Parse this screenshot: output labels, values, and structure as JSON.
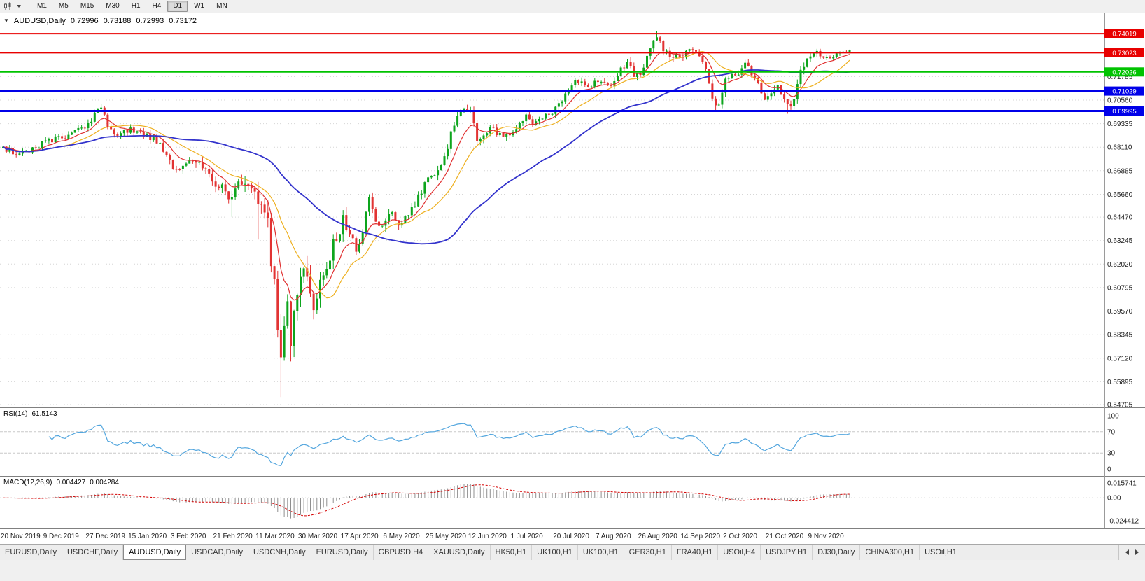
{
  "toolbar": {
    "timeframes": [
      "M1",
      "M5",
      "M15",
      "M30",
      "H1",
      "H4",
      "D1",
      "W1",
      "MN"
    ],
    "active_timeframe": "D1"
  },
  "icons": {
    "chart_dropdown_arrow": "▼"
  },
  "chart_header": {
    "symbol": "AUDUSD,Daily",
    "open": "0.72996",
    "high": "0.73188",
    "low": "0.72993",
    "close": "0.73172"
  },
  "rsi_panel": {
    "title": "RSI(14)",
    "value": "61.5143",
    "axis_labels": [
      100,
      70,
      30,
      0
    ],
    "level_lines": [
      70,
      30
    ],
    "line_color": "#53a6de"
  },
  "macd_panel": {
    "title": "MACD(12,26,9)",
    "value_macd": "0.004427",
    "value_signal": "0.004284",
    "axis_labels": [
      "0.015741",
      "0.00",
      "-0.024412"
    ],
    "axis_values": [
      0.015741,
      0,
      -0.024412
    ],
    "histogram_color": "#8f8f8f",
    "signal_color": "#d40000"
  },
  "price_axis": {
    "plain_labels": [
      "0.71785",
      "0.70560",
      "0.69335",
      "0.68110",
      "0.66885",
      "0.65660",
      "0.64470",
      "0.63245",
      "0.62020",
      "0.60795",
      "0.59570",
      "0.58345",
      "0.57120",
      "0.55895",
      "0.54705"
    ],
    "plain_values": [
      0.71785,
      0.7056,
      0.69335,
      0.6811,
      0.66885,
      0.6566,
      0.6447,
      0.63245,
      0.6202,
      0.60795,
      0.5957,
      0.58345,
      0.5712,
      0.55895,
      0.54705
    ]
  },
  "levels": [
    {
      "label": "0.74019",
      "value": 0.74019,
      "color": "#e80000",
      "width": 2
    },
    {
      "label": "0.73023",
      "value": 0.73023,
      "color": "#e80000",
      "width": 2
    },
    {
      "label": "0.72026",
      "value": 0.72026,
      "color": "#00c300",
      "width": 2
    },
    {
      "label": "0.71029",
      "value": 0.71029,
      "color": "#0000e8",
      "width": 3
    },
    {
      "label": "0.69995",
      "value": 0.69995,
      "color": "#0000e8",
      "width": 3
    }
  ],
  "date_axis": {
    "labels": [
      "20 Nov 2019",
      "9 Dec 2019",
      "27 Dec 2019",
      "15 Jan 2020",
      "3 Feb 2020",
      "21 Feb 2020",
      "11 Mar 2020",
      "30 Mar 2020",
      "17 Apr 2020",
      "6 May 2020",
      "25 May 2020",
      "12 Jun 2020",
      "1 Jul 2020",
      "20 Jul 2020",
      "7 Aug 2020",
      "26 Aug 2020",
      "14 Sep 2020",
      "2 Oct 2020",
      "21 Oct 2020",
      "9 Nov 2020"
    ],
    "day_indices": [
      0,
      13,
      26,
      39,
      52,
      65,
      78,
      91,
      104,
      117,
      130,
      143,
      156,
      169,
      182,
      195,
      208,
      221,
      234,
      247
    ]
  },
  "tabs": {
    "items": [
      "EURUSD,Daily",
      "USDCHF,Daily",
      "AUDUSD,Daily",
      "USDCAD,Daily",
      "USDCNH,Daily",
      "EURUSD,Daily",
      "GBPUSD,H4",
      "XAUUSD,Daily",
      "HK50,H1",
      "UK100,H1",
      "UK100,H1",
      "GER30,H1",
      "FRA40,H1",
      "USOil,H4",
      "USDJPY,H1",
      "DJ30,Daily",
      "CHINA300,H1",
      "USOil,H1"
    ],
    "active_index": 2
  },
  "chart_data": {
    "type": "candlestick",
    "symbol": "AUDUSD",
    "timeframe": "Daily",
    "num_days": 260,
    "value_range": {
      "top": 0.7508,
      "bottom": 0.5456
    },
    "last_candle": {
      "open": 0.72996,
      "high": 0.73188,
      "low": 0.72993,
      "close": 0.73172
    },
    "base_daily_range": 0.005,
    "price_path": [
      [
        0,
        0.6802
      ],
      [
        3,
        0.6786
      ],
      [
        6,
        0.6772
      ],
      [
        9,
        0.6798
      ],
      [
        13,
        0.6836
      ],
      [
        17,
        0.6856
      ],
      [
        21,
        0.6876
      ],
      [
        25,
        0.6916
      ],
      [
        28,
        0.6982
      ],
      [
        30,
        0.7012
      ],
      [
        32,
        0.6922
      ],
      [
        34,
        0.6868
      ],
      [
        37,
        0.689
      ],
      [
        40,
        0.6902
      ],
      [
        44,
        0.6866
      ],
      [
        48,
        0.6836
      ],
      [
        52,
        0.6692
      ],
      [
        55,
        0.6712
      ],
      [
        58,
        0.674
      ],
      [
        62,
        0.6686
      ],
      [
        65,
        0.6612
      ],
      [
        68,
        0.6586
      ],
      [
        70,
        0.6548
      ],
      [
        72,
        0.6602
      ],
      [
        73,
        0.6648
      ],
      [
        75,
        0.6622
      ],
      [
        76,
        0.658
      ],
      [
        77,
        0.6604
      ],
      [
        78,
        0.6558
      ],
      [
        79,
        0.648
      ],
      [
        80,
        0.645
      ],
      [
        81,
        0.638
      ],
      [
        82,
        0.6258
      ],
      [
        83,
        0.6078
      ],
      [
        84,
        0.5898
      ],
      [
        85,
        0.5768
      ],
      [
        86,
        0.5848
      ],
      [
        87,
        0.5948
      ],
      [
        88,
        0.5798
      ],
      [
        89,
        0.5898
      ],
      [
        90,
        0.5998
      ],
      [
        91,
        0.6128
      ],
      [
        93,
        0.6166
      ],
      [
        95,
        0.5996
      ],
      [
        97,
        0.6086
      ],
      [
        99,
        0.6176
      ],
      [
        101,
        0.6296
      ],
      [
        104,
        0.6436
      ],
      [
        106,
        0.6366
      ],
      [
        108,
        0.6296
      ],
      [
        110,
        0.6376
      ],
      [
        112,
        0.6526
      ],
      [
        114,
        0.6426
      ],
      [
        116,
        0.6396
      ],
      [
        117,
        0.6436
      ],
      [
        119,
        0.6486
      ],
      [
        121,
        0.6406
      ],
      [
        124,
        0.6456
      ],
      [
        127,
        0.6556
      ],
      [
        130,
        0.6646
      ],
      [
        133,
        0.6696
      ],
      [
        135,
        0.6756
      ],
      [
        137,
        0.6886
      ],
      [
        139,
        0.6976
      ],
      [
        141,
        0.7006
      ],
      [
        143,
        0.6986
      ],
      [
        145,
        0.6856
      ],
      [
        147,
        0.6866
      ],
      [
        149,
        0.6926
      ],
      [
        151,
        0.6886
      ],
      [
        153,
        0.6856
      ],
      [
        156,
        0.6896
      ],
      [
        158,
        0.6946
      ],
      [
        160,
        0.6966
      ],
      [
        162,
        0.6936
      ],
      [
        164,
        0.6946
      ],
      [
        166,
        0.6986
      ],
      [
        169,
        0.7006
      ],
      [
        171,
        0.7046
      ],
      [
        173,
        0.7106
      ],
      [
        175,
        0.7146
      ],
      [
        177,
        0.7156
      ],
      [
        179,
        0.7136
      ],
      [
        181,
        0.7146
      ],
      [
        183,
        0.7156
      ],
      [
        185,
        0.7136
      ],
      [
        187,
        0.7156
      ],
      [
        189,
        0.7216
      ],
      [
        191,
        0.7246
      ],
      [
        193,
        0.7186
      ],
      [
        195,
        0.7186
      ],
      [
        197,
        0.7286
      ],
      [
        199,
        0.7366
      ],
      [
        200,
        0.7386
      ],
      [
        202,
        0.7316
      ],
      [
        204,
        0.7286
      ],
      [
        206,
        0.7296
      ],
      [
        208,
        0.7296
      ],
      [
        210,
        0.7306
      ],
      [
        211,
        0.7316
      ],
      [
        213,
        0.7266
      ],
      [
        215,
        0.7216
      ],
      [
        217,
        0.7056
      ],
      [
        219,
        0.7036
      ],
      [
        220,
        0.7086
      ],
      [
        221,
        0.7156
      ],
      [
        223,
        0.7176
      ],
      [
        225,
        0.7196
      ],
      [
        227,
        0.7236
      ],
      [
        229,
        0.7196
      ],
      [
        231,
        0.7136
      ],
      [
        233,
        0.7066
      ],
      [
        235,
        0.7106
      ],
      [
        237,
        0.7126
      ],
      [
        239,
        0.7046
      ],
      [
        241,
        0.7026
      ],
      [
        242,
        0.7066
      ],
      [
        243,
        0.7156
      ],
      [
        244,
        0.7196
      ],
      [
        245,
        0.7246
      ],
      [
        247,
        0.7286
      ],
      [
        249,
        0.7306
      ],
      [
        251,
        0.7286
      ],
      [
        253,
        0.7266
      ],
      [
        255,
        0.7296
      ],
      [
        257,
        0.7306
      ],
      [
        259,
        0.73172
      ]
    ],
    "volatility_path": [
      [
        0,
        1.0
      ],
      [
        45,
        0.95
      ],
      [
        58,
        1.2
      ],
      [
        68,
        1.5
      ],
      [
        76,
        2.2
      ],
      [
        80,
        3.2
      ],
      [
        84,
        4.4
      ],
      [
        88,
        4.0
      ],
      [
        92,
        3.0
      ],
      [
        97,
        2.4
      ],
      [
        103,
        2.0
      ],
      [
        110,
        1.6
      ],
      [
        120,
        1.3
      ],
      [
        130,
        1.15
      ],
      [
        142,
        1.05
      ],
      [
        160,
        0.9
      ],
      [
        190,
        0.95
      ],
      [
        200,
        1.1
      ],
      [
        214,
        1.15
      ],
      [
        222,
        0.95
      ],
      [
        240,
        1.0
      ],
      [
        244,
        1.1
      ],
      [
        250,
        0.8
      ],
      [
        259,
        0.7
      ]
    ],
    "special_wicks": [
      {
        "day": 30,
        "high": 0.7032
      },
      {
        "day": 70,
        "low": 0.6448
      },
      {
        "day": 78,
        "low": 0.633
      },
      {
        "day": 85,
        "low": 0.551
      },
      {
        "day": 200,
        "high": 0.7414
      },
      {
        "day": 218,
        "low": 0.7004
      },
      {
        "day": 240,
        "low": 0.6985
      }
    ],
    "candle_up_color": "#0da51d",
    "candle_down_color": "#e23333",
    "moving_averages": [
      {
        "type": "ema",
        "period": 9,
        "color": "#e03030",
        "width": 1.2
      },
      {
        "type": "sma",
        "period": 18,
        "color": "#eeb020",
        "width": 1.2
      },
      {
        "type": "sma",
        "period": 55,
        "color": "#3333cc",
        "width": 1.8
      }
    ],
    "rsi_period": 14,
    "macd_params": {
      "fast": 12,
      "slow": 26,
      "signal": 9
    },
    "macd_range": {
      "max": 0.015741,
      "min": -0.024412
    }
  }
}
